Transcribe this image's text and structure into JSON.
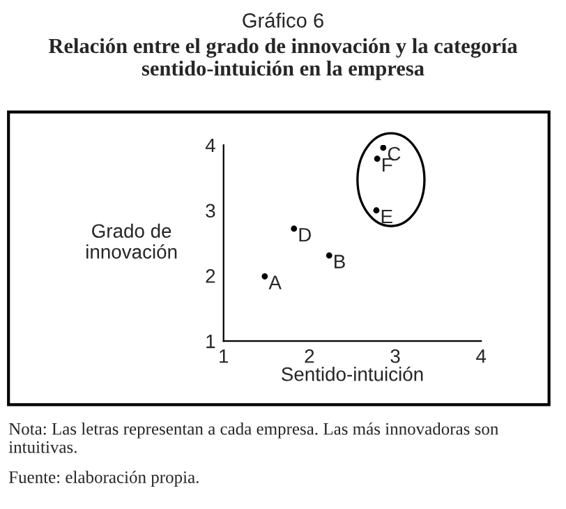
{
  "chart_data": {
    "type": "scatter",
    "title": "Gráfico 6",
    "subtitle": "Relación entre el grado de innovación y la categoría sentido-intuición en la empresa",
    "xlabel": "Sentido-intuición",
    "ylabel": "Grado de\ninnovación",
    "x": [
      1.48,
      2.23,
      2.86,
      1.82,
      2.78,
      2.79
    ],
    "series": [
      {
        "color": "#000000",
        "values": [
          1.99,
          2.31,
          3.96,
          2.72,
          3.0,
          3.79
        ]
      }
    ],
    "xlim": [
      1,
      4
    ],
    "ylim": [
      1,
      4
    ],
    "xticks": [
      1,
      2,
      3,
      4
    ],
    "yticks": [
      1,
      2,
      3,
      4
    ],
    "grid": false,
    "legend": false,
    "marker": "circle",
    "annotations": [
      {
        "text": "A",
        "x": 1.48,
        "y": 1.99
      },
      {
        "text": "B",
        "x": 2.23,
        "y": 2.31
      },
      {
        "text": "C",
        "x": 2.86,
        "y": 3.96
      },
      {
        "text": "D",
        "x": 1.82,
        "y": 2.72
      },
      {
        "text": "E",
        "x": 2.78,
        "y": 3.0
      },
      {
        "text": "F",
        "x": 2.79,
        "y": 3.79
      },
      "Nota: Las letras representan a cada empresa. Las más innovadoras son intuitivas.",
      "Fuente: elaboración propia."
    ]
  }
}
